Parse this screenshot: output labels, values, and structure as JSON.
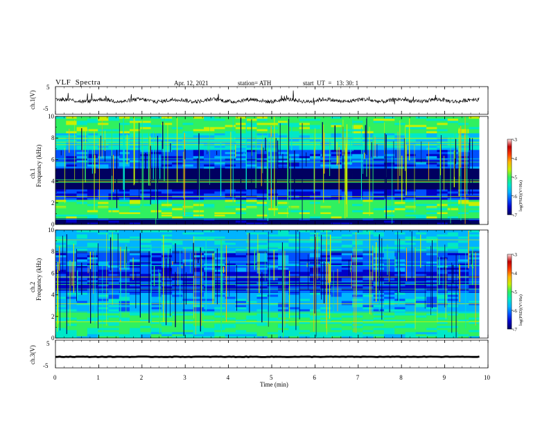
{
  "header": {
    "title": "VLF  Spectra",
    "date": "Apr. 12, 2021",
    "station": "station= ATH",
    "start_ut": "start  UT  =   13: 30: 1"
  },
  "chart_data": [
    {
      "type": "line",
      "title": "",
      "ylabel": "ch.1(V)",
      "ylim": [
        -5,
        5
      ],
      "yticks": [
        "5",
        "-5"
      ],
      "xlim": [
        0,
        10
      ],
      "series": [
        {
          "values_summary": "noisy signal around 0 V with spikes"
        }
      ],
      "color": "#000000"
    },
    {
      "type": "heatmap",
      "ylabel": "Frequency  (kHz)",
      "channel_label": "ch.1",
      "ylim": [
        0,
        10
      ],
      "yticks": [
        "0",
        "2",
        "4",
        "6",
        "8",
        "10"
      ],
      "xlim": [
        0,
        10
      ],
      "colorbar": {
        "label": "log(PSD)(V²/Hz)",
        "range": [
          -7,
          -3
        ],
        "ticks": [
          "-3",
          "-4",
          "-5",
          "-6",
          "-7"
        ]
      },
      "bands_khz": [
        {
          "from": 0.0,
          "to": 0.5,
          "level": -6.8
        },
        {
          "from": 0.5,
          "to": 2.3,
          "level": -4.8
        },
        {
          "from": 2.3,
          "to": 3.3,
          "level": -6.2
        },
        {
          "from": 3.3,
          "to": 5.2,
          "level": -6.9
        },
        {
          "from": 5.2,
          "to": 7.0,
          "level": -6.0
        },
        {
          "from": 7.0,
          "to": 8.5,
          "level": -5.3
        },
        {
          "from": 8.5,
          "to": 10.0,
          "level": -4.8
        }
      ]
    },
    {
      "type": "heatmap",
      "ylabel": "Frequency  (kHz)",
      "channel_label": "ch.2",
      "ylim": [
        0,
        10
      ],
      "yticks": [
        "0",
        "2",
        "4",
        "6",
        "8",
        "10"
      ],
      "xlim": [
        0,
        10
      ],
      "colorbar": {
        "label": "log(PSD)(V²/Hz)",
        "range": [
          -7,
          -3
        ],
        "ticks": [
          "-3",
          "-4",
          "-5",
          "-6",
          "-7"
        ]
      },
      "bands_khz": [
        {
          "from": 0.0,
          "to": 0.6,
          "level": -5.2
        },
        {
          "from": 0.6,
          "to": 2.5,
          "level": -4.9
        },
        {
          "from": 2.5,
          "to": 4.2,
          "level": -5.6
        },
        {
          "from": 4.2,
          "to": 6.2,
          "level": -6.3
        },
        {
          "from": 6.2,
          "to": 8.0,
          "level": -6.0
        },
        {
          "from": 8.0,
          "to": 10.0,
          "level": -5.5
        }
      ]
    },
    {
      "type": "line",
      "ylabel": "ch.3(V)",
      "ylim": [
        -5,
        5
      ],
      "yticks": [
        "5",
        "-5"
      ],
      "xlim": [
        0,
        10
      ],
      "xlabel": "Time  (min)",
      "xticks": [
        "0",
        "1",
        "2",
        "3",
        "4",
        "5",
        "6",
        "7",
        "8",
        "9",
        "10"
      ],
      "series": [
        {
          "values_summary": "flat thick trace near -1 V"
        }
      ],
      "color": "#000000"
    }
  ],
  "colors": {
    "colormap": [
      "#000060",
      "#0000c8",
      "#0050ff",
      "#00b4ff",
      "#00e8c8",
      "#30f060",
      "#c8f000",
      "#ffb400",
      "#ff3c00",
      "#c00000",
      "#ffe0e0"
    ]
  }
}
